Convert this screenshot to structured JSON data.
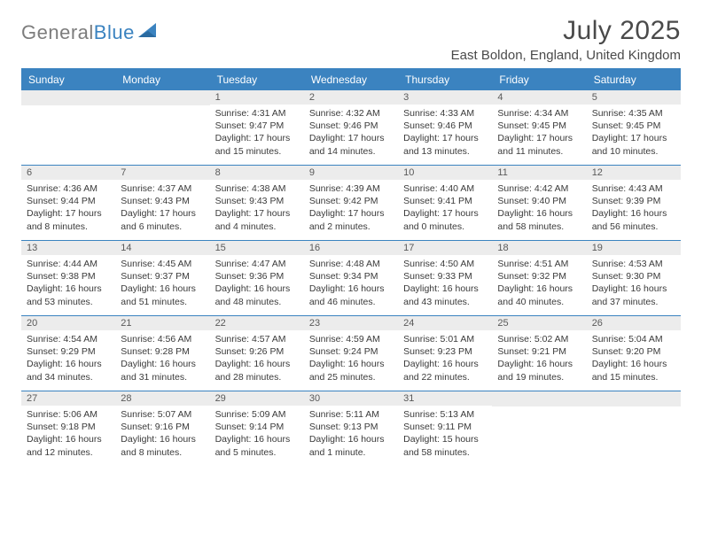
{
  "brand": {
    "name_part1": "General",
    "name_part2": "Blue",
    "accent_color": "#3b83c0",
    "text_color": "#7d7d7d"
  },
  "header": {
    "month_title": "July 2025",
    "location": "East Boldon, England, United Kingdom"
  },
  "calendar": {
    "day_names": [
      "Sunday",
      "Monday",
      "Tuesday",
      "Wednesday",
      "Thursday",
      "Friday",
      "Saturday"
    ],
    "header_bg": "#3b83c0",
    "header_fg": "#ffffff",
    "rule_color": "#3b83c0",
    "daynum_bg": "#ececec",
    "weeks": [
      [
        {
          "day": "",
          "lines": []
        },
        {
          "day": "",
          "lines": []
        },
        {
          "day": "1",
          "lines": [
            "Sunrise: 4:31 AM",
            "Sunset: 9:47 PM",
            "Daylight: 17 hours",
            "and 15 minutes."
          ]
        },
        {
          "day": "2",
          "lines": [
            "Sunrise: 4:32 AM",
            "Sunset: 9:46 PM",
            "Daylight: 17 hours",
            "and 14 minutes."
          ]
        },
        {
          "day": "3",
          "lines": [
            "Sunrise: 4:33 AM",
            "Sunset: 9:46 PM",
            "Daylight: 17 hours",
            "and 13 minutes."
          ]
        },
        {
          "day": "4",
          "lines": [
            "Sunrise: 4:34 AM",
            "Sunset: 9:45 PM",
            "Daylight: 17 hours",
            "and 11 minutes."
          ]
        },
        {
          "day": "5",
          "lines": [
            "Sunrise: 4:35 AM",
            "Sunset: 9:45 PM",
            "Daylight: 17 hours",
            "and 10 minutes."
          ]
        }
      ],
      [
        {
          "day": "6",
          "lines": [
            "Sunrise: 4:36 AM",
            "Sunset: 9:44 PM",
            "Daylight: 17 hours",
            "and 8 minutes."
          ]
        },
        {
          "day": "7",
          "lines": [
            "Sunrise: 4:37 AM",
            "Sunset: 9:43 PM",
            "Daylight: 17 hours",
            "and 6 minutes."
          ]
        },
        {
          "day": "8",
          "lines": [
            "Sunrise: 4:38 AM",
            "Sunset: 9:43 PM",
            "Daylight: 17 hours",
            "and 4 minutes."
          ]
        },
        {
          "day": "9",
          "lines": [
            "Sunrise: 4:39 AM",
            "Sunset: 9:42 PM",
            "Daylight: 17 hours",
            "and 2 minutes."
          ]
        },
        {
          "day": "10",
          "lines": [
            "Sunrise: 4:40 AM",
            "Sunset: 9:41 PM",
            "Daylight: 17 hours",
            "and 0 minutes."
          ]
        },
        {
          "day": "11",
          "lines": [
            "Sunrise: 4:42 AM",
            "Sunset: 9:40 PM",
            "Daylight: 16 hours",
            "and 58 minutes."
          ]
        },
        {
          "day": "12",
          "lines": [
            "Sunrise: 4:43 AM",
            "Sunset: 9:39 PM",
            "Daylight: 16 hours",
            "and 56 minutes."
          ]
        }
      ],
      [
        {
          "day": "13",
          "lines": [
            "Sunrise: 4:44 AM",
            "Sunset: 9:38 PM",
            "Daylight: 16 hours",
            "and 53 minutes."
          ]
        },
        {
          "day": "14",
          "lines": [
            "Sunrise: 4:45 AM",
            "Sunset: 9:37 PM",
            "Daylight: 16 hours",
            "and 51 minutes."
          ]
        },
        {
          "day": "15",
          "lines": [
            "Sunrise: 4:47 AM",
            "Sunset: 9:36 PM",
            "Daylight: 16 hours",
            "and 48 minutes."
          ]
        },
        {
          "day": "16",
          "lines": [
            "Sunrise: 4:48 AM",
            "Sunset: 9:34 PM",
            "Daylight: 16 hours",
            "and 46 minutes."
          ]
        },
        {
          "day": "17",
          "lines": [
            "Sunrise: 4:50 AM",
            "Sunset: 9:33 PM",
            "Daylight: 16 hours",
            "and 43 minutes."
          ]
        },
        {
          "day": "18",
          "lines": [
            "Sunrise: 4:51 AM",
            "Sunset: 9:32 PM",
            "Daylight: 16 hours",
            "and 40 minutes."
          ]
        },
        {
          "day": "19",
          "lines": [
            "Sunrise: 4:53 AM",
            "Sunset: 9:30 PM",
            "Daylight: 16 hours",
            "and 37 minutes."
          ]
        }
      ],
      [
        {
          "day": "20",
          "lines": [
            "Sunrise: 4:54 AM",
            "Sunset: 9:29 PM",
            "Daylight: 16 hours",
            "and 34 minutes."
          ]
        },
        {
          "day": "21",
          "lines": [
            "Sunrise: 4:56 AM",
            "Sunset: 9:28 PM",
            "Daylight: 16 hours",
            "and 31 minutes."
          ]
        },
        {
          "day": "22",
          "lines": [
            "Sunrise: 4:57 AM",
            "Sunset: 9:26 PM",
            "Daylight: 16 hours",
            "and 28 minutes."
          ]
        },
        {
          "day": "23",
          "lines": [
            "Sunrise: 4:59 AM",
            "Sunset: 9:24 PM",
            "Daylight: 16 hours",
            "and 25 minutes."
          ]
        },
        {
          "day": "24",
          "lines": [
            "Sunrise: 5:01 AM",
            "Sunset: 9:23 PM",
            "Daylight: 16 hours",
            "and 22 minutes."
          ]
        },
        {
          "day": "25",
          "lines": [
            "Sunrise: 5:02 AM",
            "Sunset: 9:21 PM",
            "Daylight: 16 hours",
            "and 19 minutes."
          ]
        },
        {
          "day": "26",
          "lines": [
            "Sunrise: 5:04 AM",
            "Sunset: 9:20 PM",
            "Daylight: 16 hours",
            "and 15 minutes."
          ]
        }
      ],
      [
        {
          "day": "27",
          "lines": [
            "Sunrise: 5:06 AM",
            "Sunset: 9:18 PM",
            "Daylight: 16 hours",
            "and 12 minutes."
          ]
        },
        {
          "day": "28",
          "lines": [
            "Sunrise: 5:07 AM",
            "Sunset: 9:16 PM",
            "Daylight: 16 hours",
            "and 8 minutes."
          ]
        },
        {
          "day": "29",
          "lines": [
            "Sunrise: 5:09 AM",
            "Sunset: 9:14 PM",
            "Daylight: 16 hours",
            "and 5 minutes."
          ]
        },
        {
          "day": "30",
          "lines": [
            "Sunrise: 5:11 AM",
            "Sunset: 9:13 PM",
            "Daylight: 16 hours",
            "and 1 minute."
          ]
        },
        {
          "day": "31",
          "lines": [
            "Sunrise: 5:13 AM",
            "Sunset: 9:11 PM",
            "Daylight: 15 hours",
            "and 58 minutes."
          ]
        },
        {
          "day": "",
          "lines": []
        },
        {
          "day": "",
          "lines": []
        }
      ]
    ]
  }
}
